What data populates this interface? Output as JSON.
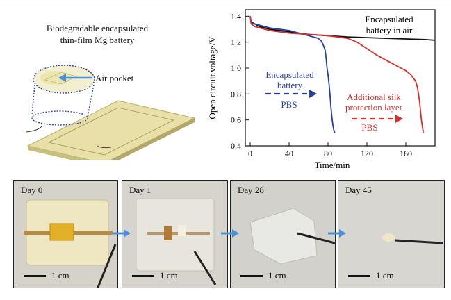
{
  "schematic": {
    "title_line1": "Biodegradable encapsulated",
    "title_line2": "thin-film Mg battery",
    "air_pocket_label": "Air pocket"
  },
  "chart_data": {
    "type": "line",
    "xlabel": "Time/min",
    "ylabel": "Open circuit voltage/V",
    "xlim": [
      -5,
      190
    ],
    "ylim": [
      0.4,
      1.45
    ],
    "xticks": [
      0,
      40,
      80,
      120,
      160
    ],
    "yticks": [
      0.4,
      0.6,
      0.8,
      1.0,
      1.2,
      1.4
    ],
    "grid": false,
    "series": [
      {
        "color": "#111111",
        "x": [
          0,
          10,
          20,
          40,
          60,
          80,
          100,
          120,
          140,
          160,
          180,
          190
        ],
        "y": [
          1.36,
          1.32,
          1.3,
          1.28,
          1.26,
          1.25,
          1.24,
          1.235,
          1.23,
          1.225,
          1.22,
          1.215
        ]
      },
      {
        "color": "#2a3f9f",
        "x": [
          0,
          1,
          5,
          10,
          20,
          30,
          40,
          50,
          55,
          60,
          65,
          70,
          73,
          75,
          77,
          78,
          79,
          80,
          81,
          82,
          83,
          84,
          85,
          86,
          87
        ],
        "y": [
          1.4,
          1.35,
          1.34,
          1.33,
          1.31,
          1.3,
          1.29,
          1.27,
          1.26,
          1.25,
          1.24,
          1.23,
          1.21,
          1.18,
          1.14,
          1.08,
          1.0,
          0.95,
          0.88,
          0.8,
          0.7,
          0.62,
          0.56,
          0.52,
          0.5
        ]
      },
      {
        "color": "#d23030",
        "x": [
          0,
          1,
          5,
          10,
          20,
          40,
          60,
          80,
          100,
          110,
          120,
          130,
          140,
          150,
          155,
          160,
          165,
          170,
          172,
          174,
          176,
          178
        ],
        "y": [
          1.4,
          1.34,
          1.32,
          1.31,
          1.29,
          1.27,
          1.26,
          1.25,
          1.23,
          1.2,
          1.15,
          1.1,
          1.06,
          1.02,
          1.0,
          0.98,
          0.95,
          0.9,
          0.85,
          0.75,
          0.6,
          0.5
        ]
      }
    ],
    "annotations": {
      "black_line1": "Encapsulated",
      "black_line2": "battery in air",
      "blue_line1": "Encapsulated",
      "blue_line2": "battery",
      "blue_pbs": "PBS",
      "red_line1": "Additional silk",
      "red_line2": "protection layer",
      "red_pbs": "PBS"
    }
  },
  "photos": [
    {
      "label": "Day 0",
      "scale": "1 cm"
    },
    {
      "label": "Day 1",
      "scale": "1 cm"
    },
    {
      "label": "Day 28",
      "scale": "1 cm"
    },
    {
      "label": "Day 45",
      "scale": "1 cm"
    }
  ],
  "colors": {
    "black_series": "#111111",
    "blue_series": "#2a3f9f",
    "red_series": "#d23030",
    "arrow_blue": "#4a90d9"
  }
}
